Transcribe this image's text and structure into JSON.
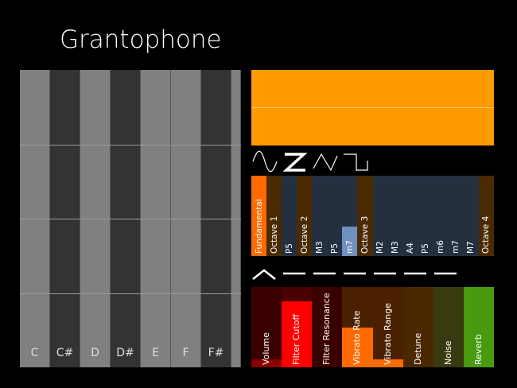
{
  "app": {
    "title": "Grantophone"
  },
  "keyboard": {
    "keys": [
      {
        "label": "C",
        "color": "#808080"
      },
      {
        "label": "C#",
        "color": "#333333"
      },
      {
        "label": "D",
        "color": "#808080"
      },
      {
        "label": "D#",
        "color": "#333333"
      },
      {
        "label": "E",
        "color": "#808080"
      },
      {
        "label": "F",
        "color": "#808080"
      },
      {
        "label": "F#",
        "color": "#333333"
      },
      {
        "label": "",
        "color": "#808080"
      }
    ]
  },
  "display": {
    "color": "#ff9a00"
  },
  "waveforms": [
    {
      "icon": "sine-wave-icon",
      "selected": false
    },
    {
      "icon": "sawtooth-wave-icon",
      "selected": true
    },
    {
      "icon": "triangle-wave-icon",
      "selected": false
    },
    {
      "icon": "square-wave-icon",
      "selected": false
    }
  ],
  "harmonics": [
    {
      "label": "Fundamental",
      "bg": "#ff6a00",
      "level": 1
    },
    {
      "label": "Octave 1",
      "bg": "#4a2a00",
      "level": 0
    },
    {
      "label": "P5",
      "bg": "#243040",
      "level": 0
    },
    {
      "label": "Octave 2",
      "bg": "#4a2a00",
      "level": 0
    },
    {
      "label": "M3",
      "bg": "#243040",
      "level": 0
    },
    {
      "label": "P5",
      "bg": "#243040",
      "level": 0
    },
    {
      "label": "m7",
      "bg": "#243040",
      "level": 0.37,
      "fill": "#7090c0"
    },
    {
      "label": "Octave 3",
      "bg": "#4a2a00",
      "level": 0
    },
    {
      "label": "M2",
      "bg": "#243040",
      "level": 0
    },
    {
      "label": "M3",
      "bg": "#243040",
      "level": 0
    },
    {
      "label": "A4",
      "bg": "#243040",
      "level": 0
    },
    {
      "label": "P5",
      "bg": "#243040",
      "level": 0
    },
    {
      "label": "m6",
      "bg": "#243040",
      "level": 0
    },
    {
      "label": "m7",
      "bg": "#243040",
      "level": 0
    },
    {
      "label": "M7",
      "bg": "#243040",
      "level": 0
    },
    {
      "label": "Octave 4",
      "bg": "#4a2a00",
      "level": 0
    }
  ],
  "envelope": [
    {
      "icon": "attack-peak-icon"
    },
    {
      "icon": "flat-line-icon"
    },
    {
      "icon": "flat-line-icon"
    },
    {
      "icon": "flat-line-icon"
    },
    {
      "icon": "flat-line-icon"
    },
    {
      "icon": "flat-line-icon"
    },
    {
      "icon": "flat-line-icon"
    }
  ],
  "sliders": [
    {
      "label": "Volume",
      "bg": "#3a0000",
      "fill": "#8a0000",
      "level": 0.1
    },
    {
      "label": "Filter Cutoff",
      "bg": "#4a0000",
      "fill": "#ff0000",
      "level": 0.82
    },
    {
      "label": "Filter Resonance",
      "bg": "#3a0000",
      "fill": "#8a0000",
      "level": 0
    },
    {
      "label": "Vibrato Rate",
      "bg": "#4a2000",
      "fill": "#ff6a00",
      "level": 0.5
    },
    {
      "label": "Vibrato Range",
      "bg": "#4a2000",
      "fill": "#ff6a00",
      "level": 0.1
    },
    {
      "label": "Detune",
      "bg": "#4a2800",
      "fill": "#ff8a00",
      "level": 0
    },
    {
      "label": "Noise",
      "bg": "#3a3a10",
      "fill": "#9a9a20",
      "level": 0
    },
    {
      "label": "Reverb",
      "bg": "#4a9a10",
      "fill": "#4a9a10",
      "level": 1
    }
  ]
}
